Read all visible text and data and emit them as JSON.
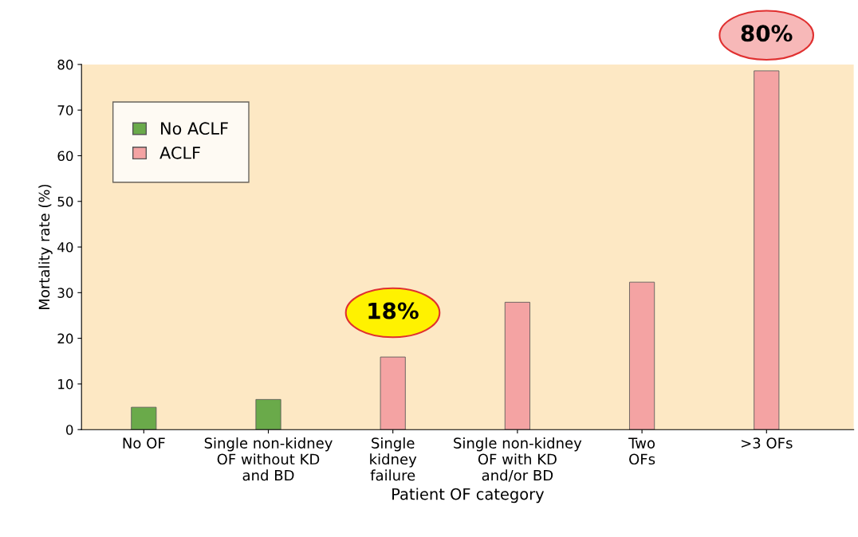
{
  "chart_data": {
    "type": "bar",
    "categories": [
      "No OF",
      "Single non-kidney\nOF without KD\nand BD",
      "Single\nkidney\nfailure",
      "Single non-kidney\nOF with KD\nand/or BD",
      "Two\nOFs",
      ">3 OFs"
    ],
    "series": [
      {
        "name": "No ACLF",
        "color": "#6aaa4a",
        "values": [
          4.9,
          6.6,
          null,
          null,
          null,
          null
        ]
      },
      {
        "name": "ACLF",
        "color": "#f4a3a3",
        "values": [
          null,
          null,
          15.9,
          27.9,
          32.3,
          78.6
        ]
      }
    ],
    "xlabel": "Patient OF category",
    "ylabel": "Mortality rate (%)",
    "ylim": [
      0,
      80
    ],
    "yticks": [
      0,
      10,
      20,
      30,
      40,
      50,
      60,
      70,
      80
    ],
    "grid": false,
    "legend": "top left",
    "annotations": [
      "18%",
      "80%"
    ]
  }
}
